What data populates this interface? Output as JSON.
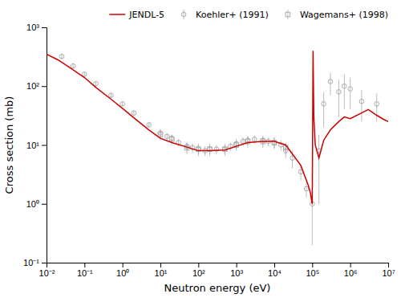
{
  "chart_data": {
    "type": "line",
    "xlabel": "Neutron energy (eV)",
    "ylabel": "Cross section (mb)",
    "log": true,
    "grid": false,
    "legend": "upper-right",
    "xlim": [
      0.01,
      10000000
    ],
    "ylim": [
      0.1,
      1000
    ],
    "xticks": [
      {
        "value": 0.01,
        "label": "10⁻²"
      },
      {
        "value": 0.1,
        "label": "10⁻¹"
      },
      {
        "value": 1,
        "label": "10⁰"
      },
      {
        "value": 10,
        "label": "10¹"
      },
      {
        "value": 100,
        "label": "10²"
      },
      {
        "value": 1000,
        "label": "10³"
      },
      {
        "value": 10000,
        "label": "10⁴"
      },
      {
        "value": 100000,
        "label": "10⁵"
      },
      {
        "value": 1000000,
        "label": "10⁶"
      },
      {
        "value": 10000000,
        "label": "10⁷"
      }
    ],
    "yticks": [
      {
        "value": 0.1,
        "label": "10⁻¹"
      },
      {
        "value": 1,
        "label": "10⁰"
      },
      {
        "value": 10,
        "label": "10¹"
      },
      {
        "value": 100,
        "label": "10²"
      },
      {
        "value": 1000,
        "label": "10³"
      }
    ],
    "series": [
      {
        "name": "JENDL-5",
        "type": "line",
        "color": "#cc0000",
        "x": [
          0.01,
          0.02,
          0.05,
          0.1,
          0.2,
          0.5,
          1.0,
          2.0,
          5.0,
          10.0,
          20.0,
          50.0,
          100.0,
          200.0,
          500.0,
          1000.0,
          2000.0,
          5000.0,
          10000.0,
          20000.0,
          50000.0,
          80000.0,
          90000.0,
          95000.0,
          98000.0,
          100000.0,
          102000.0,
          105000.0,
          110000.0,
          120000.0,
          150000.0,
          200000.0,
          300000.0,
          500000.0,
          700000.0,
          1000000.0,
          2000000.0,
          3000000.0,
          5000000.0,
          7000000.0,
          10000000.0
        ],
        "values": [
          350,
          280,
          190,
          140,
          95,
          60,
          42,
          29,
          18,
          13,
          11,
          9.2,
          8.0,
          8.0,
          8.2,
          9.5,
          11.0,
          11.5,
          11.5,
          10.0,
          4.5,
          2.0,
          1.5,
          1.2,
          1.05,
          1.0,
          10.0,
          400.0,
          30.0,
          10.0,
          6.0,
          12.0,
          18.0,
          25.0,
          30.0,
          28.0,
          35.0,
          40.0,
          32.0,
          28.0,
          25.0
        ]
      },
      {
        "name": "Koehler+ (1991)",
        "type": "scatter",
        "marker": "circle",
        "color": "#aaaaaa",
        "x": [
          0.0253,
          0.05,
          0.1,
          0.2,
          0.5,
          1.0,
          2.0,
          5.0,
          10.0,
          15.0,
          20.0,
          30.0,
          50.0,
          70.0,
          100.0,
          150.0,
          200.0,
          300.0,
          500.0,
          700.0,
          1000.0,
          1500.0,
          2000.0,
          3000.0,
          5000.0,
          7000.0,
          10000.0,
          15000.0,
          20000.0,
          30000.0,
          50000.0,
          70000.0,
          100000.0,
          150000.0,
          200000.0,
          300000.0,
          500000.0,
          700000.0,
          1000000.0,
          2000000.0,
          5000000.0
        ],
        "values": [
          320,
          220,
          160,
          110,
          70,
          50,
          35,
          22,
          16,
          14,
          13,
          11,
          9.5,
          9.0,
          8.5,
          8.0,
          8.5,
          8.5,
          8.5,
          9.5,
          10.5,
          11.5,
          12.0,
          12.5,
          12.0,
          11.5,
          11.0,
          10.0,
          8.0,
          6.0,
          3.5,
          1.8,
          1.0,
          8.0,
          50.0,
          120.0,
          80.0,
          100.0,
          90.0,
          55.0,
          50.0
        ],
        "yerr_lo": [
          30,
          20,
          15,
          10,
          7,
          5,
          3,
          2,
          2.5,
          2,
          2,
          1.5,
          1.5,
          1.5,
          1.5,
          1.5,
          1.5,
          1.5,
          1.5,
          1.5,
          2,
          2,
          2,
          2,
          2,
          2,
          2,
          2,
          2,
          2,
          1,
          0.5,
          0.8,
          7,
          30,
          50,
          50,
          60,
          50,
          30,
          25
        ],
        "yerr_hi": [
          30,
          20,
          15,
          10,
          7,
          5,
          3,
          2,
          2.5,
          2,
          2,
          1.5,
          1.5,
          1.5,
          1.5,
          1.5,
          1.5,
          1.5,
          1.5,
          1.5,
          2,
          2,
          2,
          2,
          2,
          2,
          2,
          2,
          2,
          2,
          1,
          0.5,
          0.8,
          7,
          30,
          50,
          50,
          60,
          50,
          30,
          25
        ]
      },
      {
        "name": "Wagemans+ (1998)",
        "type": "scatter",
        "marker": "square",
        "color": "#aaaaaa",
        "x": [
          10.0,
          20.0,
          50.0,
          100.0,
          200.0,
          500.0,
          1000.0,
          2000.0,
          5000.0,
          10000.0,
          20000.0
        ],
        "values": [
          15.0,
          12.5,
          9.0,
          8.5,
          8.5,
          8.5,
          10.0,
          11.5,
          11.5,
          11.0,
          9.0
        ],
        "yerr": [
          3.0,
          2.5,
          2.0,
          2.0,
          2.0,
          2.0,
          2.0,
          2.5,
          2.5,
          2.5,
          2.0
        ]
      }
    ]
  }
}
